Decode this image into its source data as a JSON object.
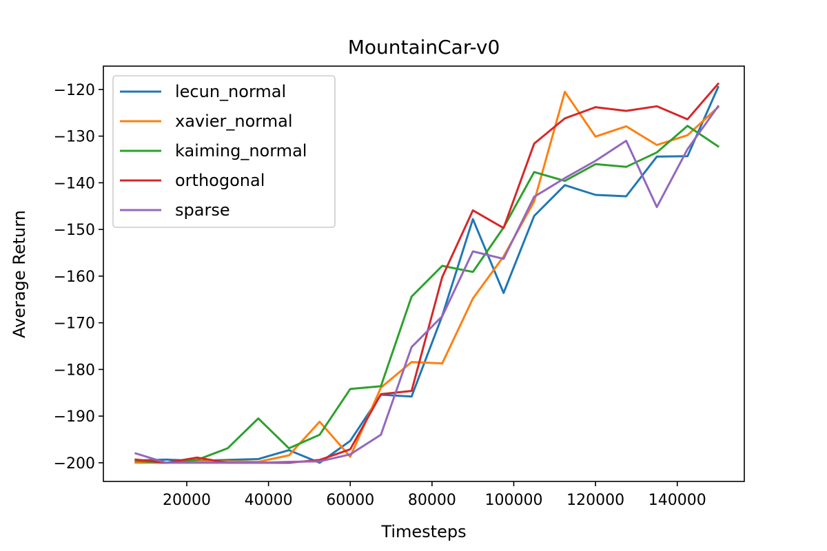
{
  "chart_data": {
    "type": "line",
    "title": "MountainCar-v0",
    "xlabel": "Timesteps",
    "ylabel": "Average Return",
    "xlim": [
      -400,
      156400
    ],
    "ylim": [
      -204,
      -115
    ],
    "xticks": [
      20000,
      40000,
      60000,
      80000,
      100000,
      120000,
      140000
    ],
    "yticks": [
      -120,
      -130,
      -140,
      -150,
      -160,
      -170,
      -180,
      -190,
      -200
    ],
    "grid": false,
    "legend_position": "top-left",
    "x": [
      7500,
      15000,
      22500,
      30000,
      37500,
      45000,
      52500,
      60000,
      67500,
      75000,
      82500,
      90000,
      97500,
      105000,
      112500,
      120000,
      127500,
      135000,
      142500,
      150000
    ],
    "series": [
      {
        "name": "lecun_normal",
        "color": "#1f77b4",
        "values": [
          -199.5,
          -199.3,
          -199.6,
          -199.4,
          -199.2,
          -197.3,
          -200.0,
          -195.3,
          -185.4,
          -185.8,
          -168.5,
          -147.8,
          -163.6,
          -147.1,
          -140.5,
          -142.6,
          -142.9,
          -134.4,
          -134.3,
          -119.5
        ]
      },
      {
        "name": "xavier_normal",
        "color": "#ff7f0e",
        "values": [
          -200.0,
          -200.0,
          -199.7,
          -199.7,
          -199.8,
          -198.4,
          -191.2,
          -198.7,
          -183.9,
          -178.4,
          -178.7,
          -164.8,
          -155.8,
          -144.0,
          -120.5,
          -130.1,
          -127.9,
          -131.9,
          -129.8,
          -123.8
        ]
      },
      {
        "name": "kaiming_normal",
        "color": "#2ca02c",
        "values": [
          -199.6,
          -200.0,
          -199.4,
          -196.9,
          -190.5,
          -196.9,
          -194.0,
          -184.2,
          -183.6,
          -164.4,
          -157.8,
          -159.1,
          -149.6,
          -137.7,
          -139.6,
          -136.0,
          -136.6,
          -133.5,
          -127.8,
          -132.2
        ]
      },
      {
        "name": "orthogonal",
        "color": "#d62728",
        "values": [
          -199.3,
          -200.0,
          -198.9,
          -200.0,
          -200.0,
          -200.0,
          -199.4,
          -197.1,
          -185.3,
          -184.6,
          -160.2,
          -145.9,
          -149.7,
          -131.6,
          -126.2,
          -123.8,
          -124.6,
          -123.6,
          -126.4,
          -118.8
        ]
      },
      {
        "name": "sparse",
        "color": "#9467bd",
        "values": [
          -198.0,
          -200.0,
          -200.0,
          -200.0,
          -200.0,
          -199.8,
          -199.7,
          -198.2,
          -194.0,
          -175.2,
          -168.6,
          -154.7,
          -156.3,
          -143.0,
          -139.0,
          -135.3,
          -131.0,
          -145.2,
          -132.8,
          -123.6
        ]
      }
    ]
  }
}
